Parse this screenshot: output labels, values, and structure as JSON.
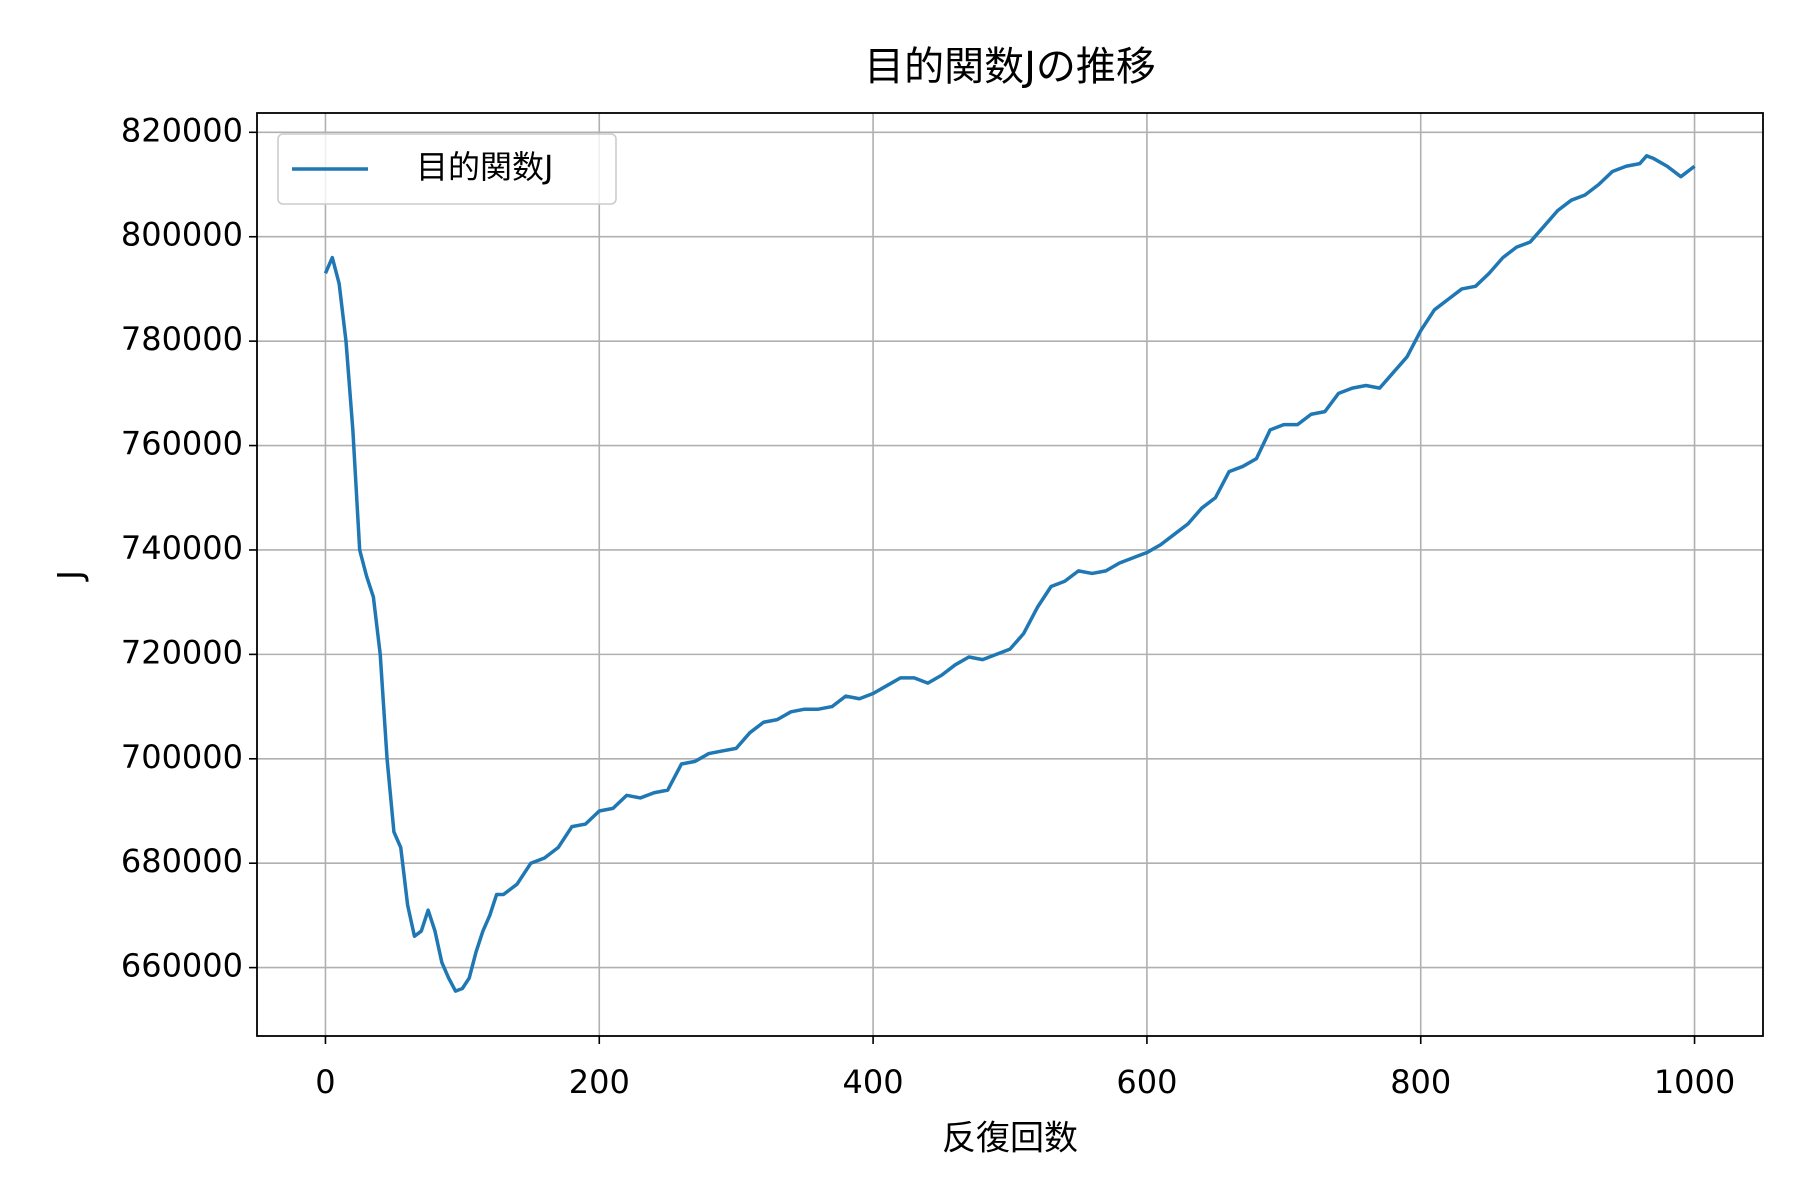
{
  "chart_data": {
    "type": "line",
    "title": "目的関数Jの推移",
    "x_label": "反復回数",
    "y_label": "J",
    "x": [
      0,
      5,
      10,
      15,
      20,
      25,
      30,
      35,
      40,
      45,
      50,
      55,
      60,
      65,
      70,
      75,
      80,
      85,
      90,
      95,
      100,
      105,
      110,
      115,
      120,
      125,
      130,
      140,
      150,
      160,
      170,
      180,
      190,
      200,
      210,
      220,
      230,
      240,
      250,
      260,
      270,
      280,
      290,
      300,
      310,
      320,
      330,
      340,
      350,
      360,
      370,
      380,
      390,
      400,
      410,
      420,
      430,
      440,
      450,
      460,
      470,
      480,
      490,
      500,
      510,
      520,
      530,
      540,
      550,
      560,
      570,
      580,
      590,
      600,
      610,
      620,
      630,
      640,
      650,
      660,
      670,
      680,
      690,
      700,
      710,
      720,
      730,
      740,
      750,
      760,
      770,
      780,
      790,
      800,
      810,
      820,
      830,
      840,
      850,
      860,
      870,
      880,
      890,
      900,
      910,
      920,
      930,
      940,
      950,
      960,
      965,
      970,
      980,
      990,
      1000
    ],
    "series": [
      {
        "name": "目的関数J",
        "color": "#1f77b4",
        "values": [
          793000,
          796000,
          791000,
          780000,
          763000,
          740000,
          735000,
          731000,
          720000,
          700000,
          686000,
          683000,
          672000,
          666000,
          667000,
          671000,
          667000,
          661000,
          658000,
          655500,
          656000,
          658000,
          663000,
          667000,
          670000,
          674000,
          674000,
          676000,
          680000,
          681000,
          683000,
          687000,
          687500,
          690000,
          690500,
          693000,
          692500,
          693500,
          694000,
          699000,
          699500,
          701000,
          701500,
          702000,
          705000,
          707000,
          707500,
          709000,
          709500,
          709500,
          710000,
          712000,
          711500,
          712500,
          714000,
          715500,
          715500,
          714500,
          716000,
          718000,
          719500,
          719000,
          720000,
          721000,
          724000,
          729000,
          733000,
          734000,
          736000,
          735500,
          736000,
          737500,
          738500,
          739500,
          741000,
          743000,
          745000,
          748000,
          750000,
          755000,
          756000,
          757500,
          763000,
          764000,
          764000,
          766000,
          766500,
          770000,
          771000,
          771500,
          771000,
          774000,
          777000,
          782000,
          786000,
          788000,
          790000,
          790500,
          793000,
          796000,
          798000,
          799000,
          802000,
          805000,
          807000,
          808000,
          810000,
          812500,
          813500,
          814000,
          815500,
          815000,
          813500,
          811500,
          813500
        ]
      }
    ],
    "xlim": [
      -50,
      1050
    ],
    "ylim": [
      646900,
      823700
    ],
    "xticks": [
      0,
      200,
      400,
      600,
      800,
      1000
    ],
    "yticks": [
      660000,
      680000,
      700000,
      720000,
      740000,
      760000,
      780000,
      800000,
      820000
    ],
    "grid": true,
    "legend": "upper left"
  }
}
